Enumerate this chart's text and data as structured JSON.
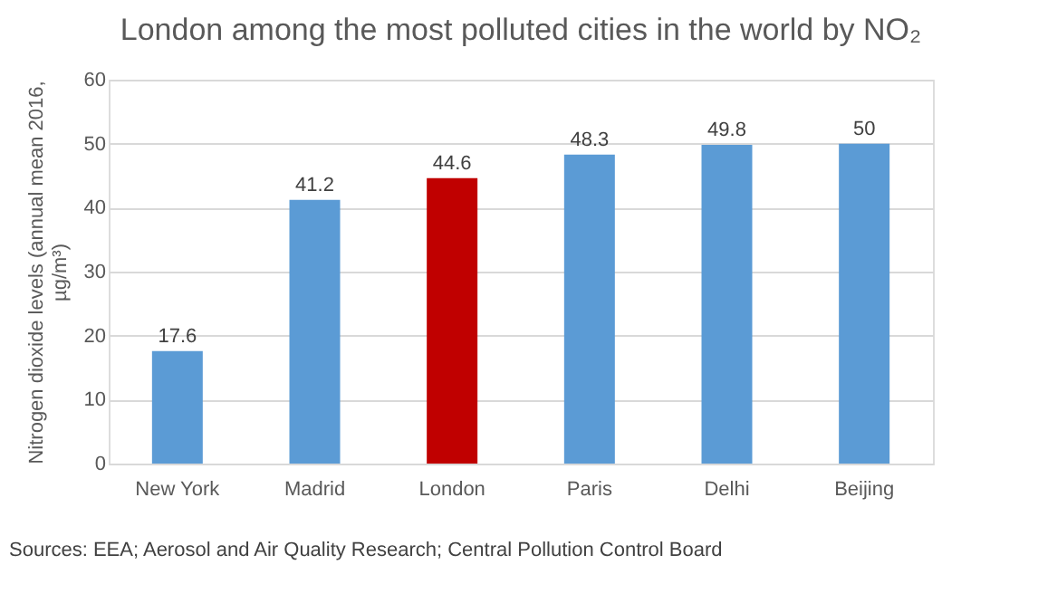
{
  "chart_data": {
    "type": "bar",
    "title": "London among the most polluted cities in the world by NO₂",
    "ylabel": "Nitrogen dioxide levels (annual mean 2016, µg/m³)",
    "categories": [
      "New York",
      "Madrid",
      "London",
      "Paris",
      "Delhi",
      "Beijing"
    ],
    "values": [
      17.6,
      41.2,
      44.6,
      48.3,
      49.8,
      50
    ],
    "colors": [
      "#5b9bd5",
      "#5b9bd5",
      "#c00000",
      "#5b9bd5",
      "#5b9bd5",
      "#5b9bd5"
    ],
    "ylim": [
      0,
      60
    ],
    "yticks": [
      0,
      10,
      20,
      30,
      40,
      50,
      60
    ],
    "grid": "y",
    "data_labels": true,
    "annotations": [
      "Sources: EEA; Aerosol and Air Quality Research; Central Pollution Control Board"
    ]
  }
}
